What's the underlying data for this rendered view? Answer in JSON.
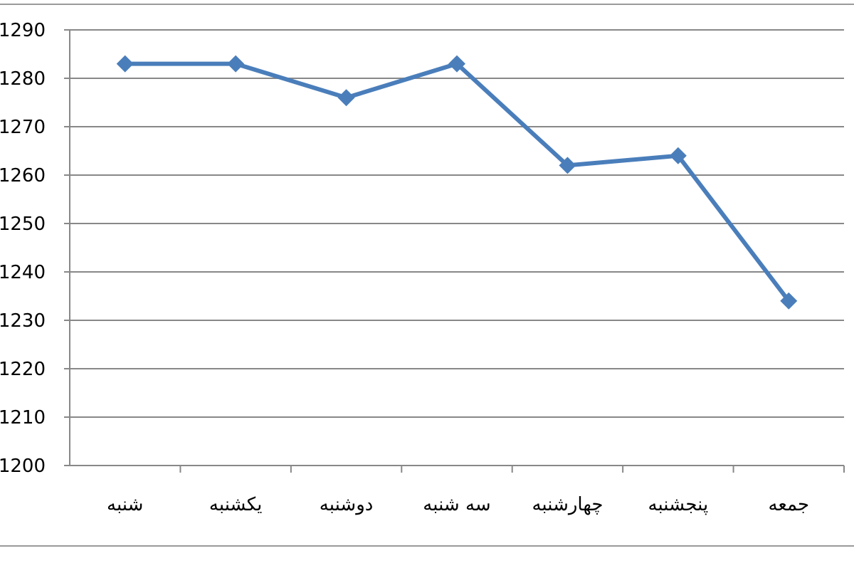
{
  "chart_data": {
    "type": "line",
    "title": "",
    "xlabel": "",
    "ylabel": "",
    "categories": [
      "شنبه",
      "یکشنبه",
      "دوشنبه",
      "سه شنبه",
      "چهارشنبه",
      "پنجشنبه",
      "جمعه"
    ],
    "series": [
      {
        "values": [
          1283,
          1283,
          1276,
          1283,
          1262,
          1264,
          1234
        ]
      }
    ],
    "ylim": [
      1200,
      1290
    ],
    "yticks": [
      "1200",
      "1210",
      "1220",
      "1230",
      "1240",
      "1250",
      "1260",
      "1270",
      "1280",
      "1290"
    ],
    "grid": true,
    "legend": "none",
    "marker": "diamond",
    "colors": {
      "series": "#4a7ebb",
      "grid": "#888888",
      "axis": "#888888"
    }
  }
}
